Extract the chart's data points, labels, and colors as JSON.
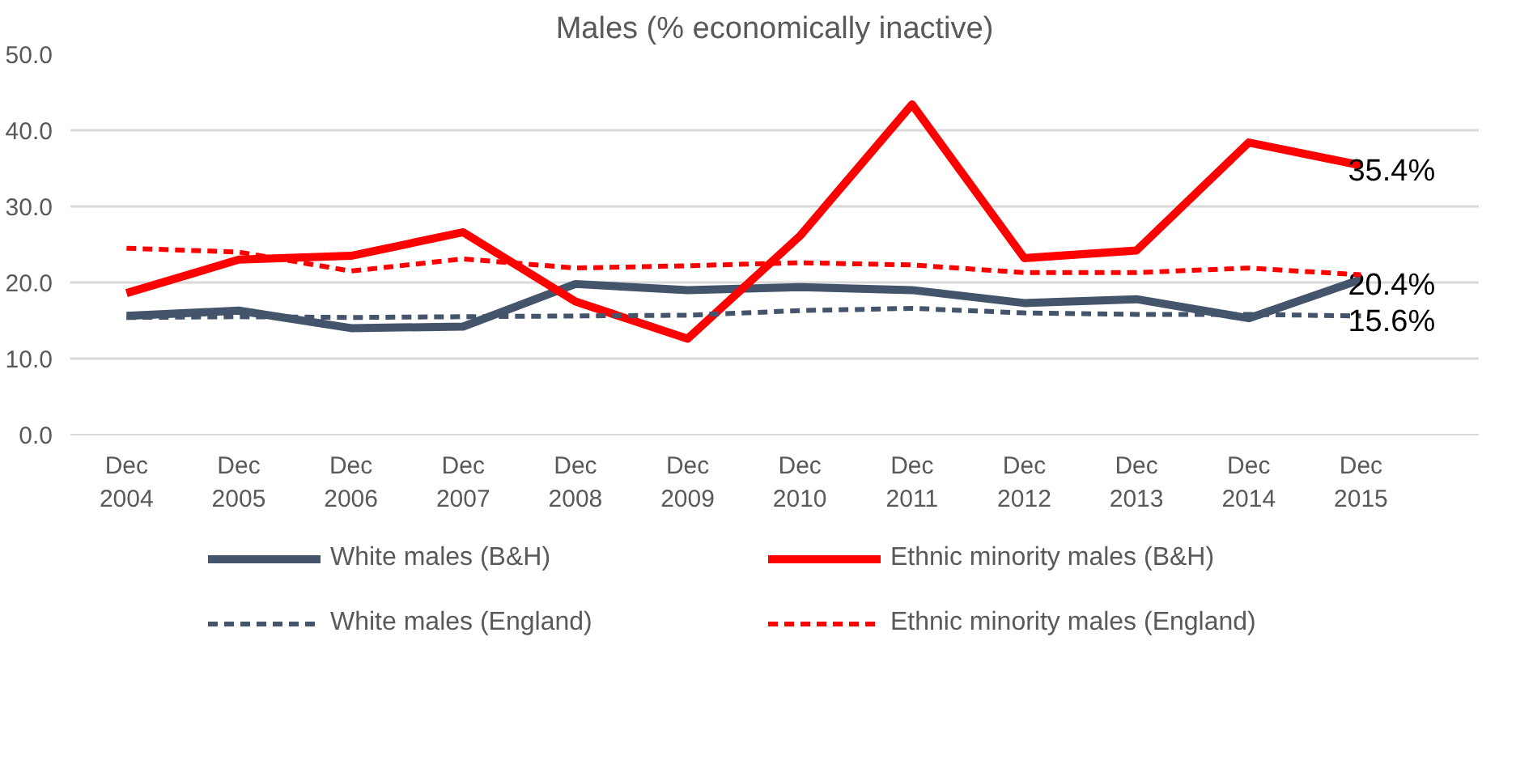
{
  "chart_data": {
    "type": "line",
    "title": "Males (% economically inactive)",
    "categories": [
      "Dec\n2004",
      "Dec\n2005",
      "Dec\n2006",
      "Dec\n2007",
      "Dec\n2008",
      "Dec\n2009",
      "Dec\n2010",
      "Dec\n2011",
      "Dec\n2012",
      "Dec\n2013",
      "Dec\n2014",
      "Dec\n2015"
    ],
    "series": [
      {
        "name": "White males (B&H)",
        "color": "#44546a",
        "line_style": "solid",
        "values": [
          15.6,
          16.3,
          14.0,
          14.2,
          19.8,
          19.0,
          19.4,
          19.0,
          17.3,
          17.8,
          15.3,
          20.4
        ],
        "value_labels": [
          null,
          null,
          null,
          null,
          null,
          null,
          null,
          null,
          null,
          null,
          null,
          "20.4%"
        ]
      },
      {
        "name": "Ethnic minority males (B&H)",
        "color": "#ff0000",
        "line_style": "solid",
        "values": [
          18.6,
          23.0,
          23.5,
          26.6,
          17.5,
          12.6,
          26.1,
          43.4,
          23.2,
          24.2,
          38.4,
          35.4
        ],
        "value_labels": [
          null,
          null,
          null,
          null,
          null,
          null,
          null,
          null,
          null,
          null,
          null,
          "35.4%"
        ]
      },
      {
        "name": "White males (England)",
        "color": "#44546a",
        "line_style": "dashed",
        "values": [
          15.4,
          15.5,
          15.4,
          15.5,
          15.6,
          15.7,
          16.3,
          16.6,
          16.0,
          15.8,
          15.8,
          15.6
        ],
        "value_labels": [
          null,
          null,
          null,
          null,
          null,
          null,
          null,
          null,
          null,
          null,
          null,
          "15.6%"
        ]
      },
      {
        "name": "Ethnic minority males (England)",
        "color": "#ff0000",
        "line_style": "dashed",
        "values": [
          24.5,
          24.0,
          21.5,
          23.1,
          21.9,
          22.2,
          22.6,
          22.3,
          21.3,
          21.3,
          21.9,
          21.0
        ]
      }
    ],
    "ylim": [
      0,
      50
    ],
    "yticks": [
      {
        "value": 0,
        "label": "0.0"
      },
      {
        "value": 10,
        "label": "10.0"
      },
      {
        "value": 20,
        "label": "20.0"
      },
      {
        "value": 30,
        "label": "30.0"
      },
      {
        "value": 40,
        "label": "40.0"
      },
      {
        "value": 50,
        "label": "50.0"
      }
    ],
    "grid": "y",
    "legend": "bottom",
    "marker": "none"
  }
}
